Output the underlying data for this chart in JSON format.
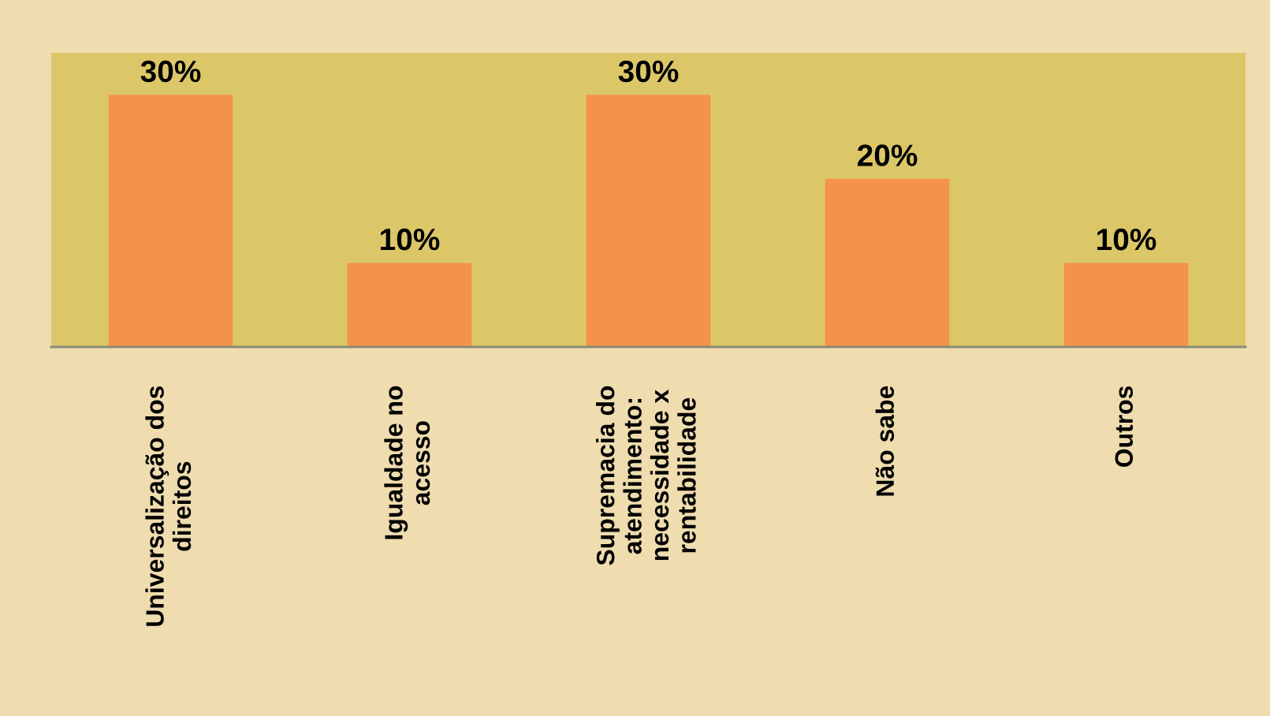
{
  "chart_data": {
    "type": "bar",
    "categories": [
      "Universalização dos\ndireitos",
      "Igualdade no\nacesso",
      "Supremacia do\natendimento:\nnecessidade x\nrentabilidade",
      "Não sabe",
      "Outros"
    ],
    "values": [
      30,
      10,
      30,
      20,
      10
    ],
    "value_labels": [
      "30%",
      "10%",
      "30%",
      "20%",
      "10%"
    ],
    "color": "#f5924a",
    "ylim": [
      0,
      35
    ],
    "tick_labels": "x",
    "grid": false,
    "legend": false
  }
}
